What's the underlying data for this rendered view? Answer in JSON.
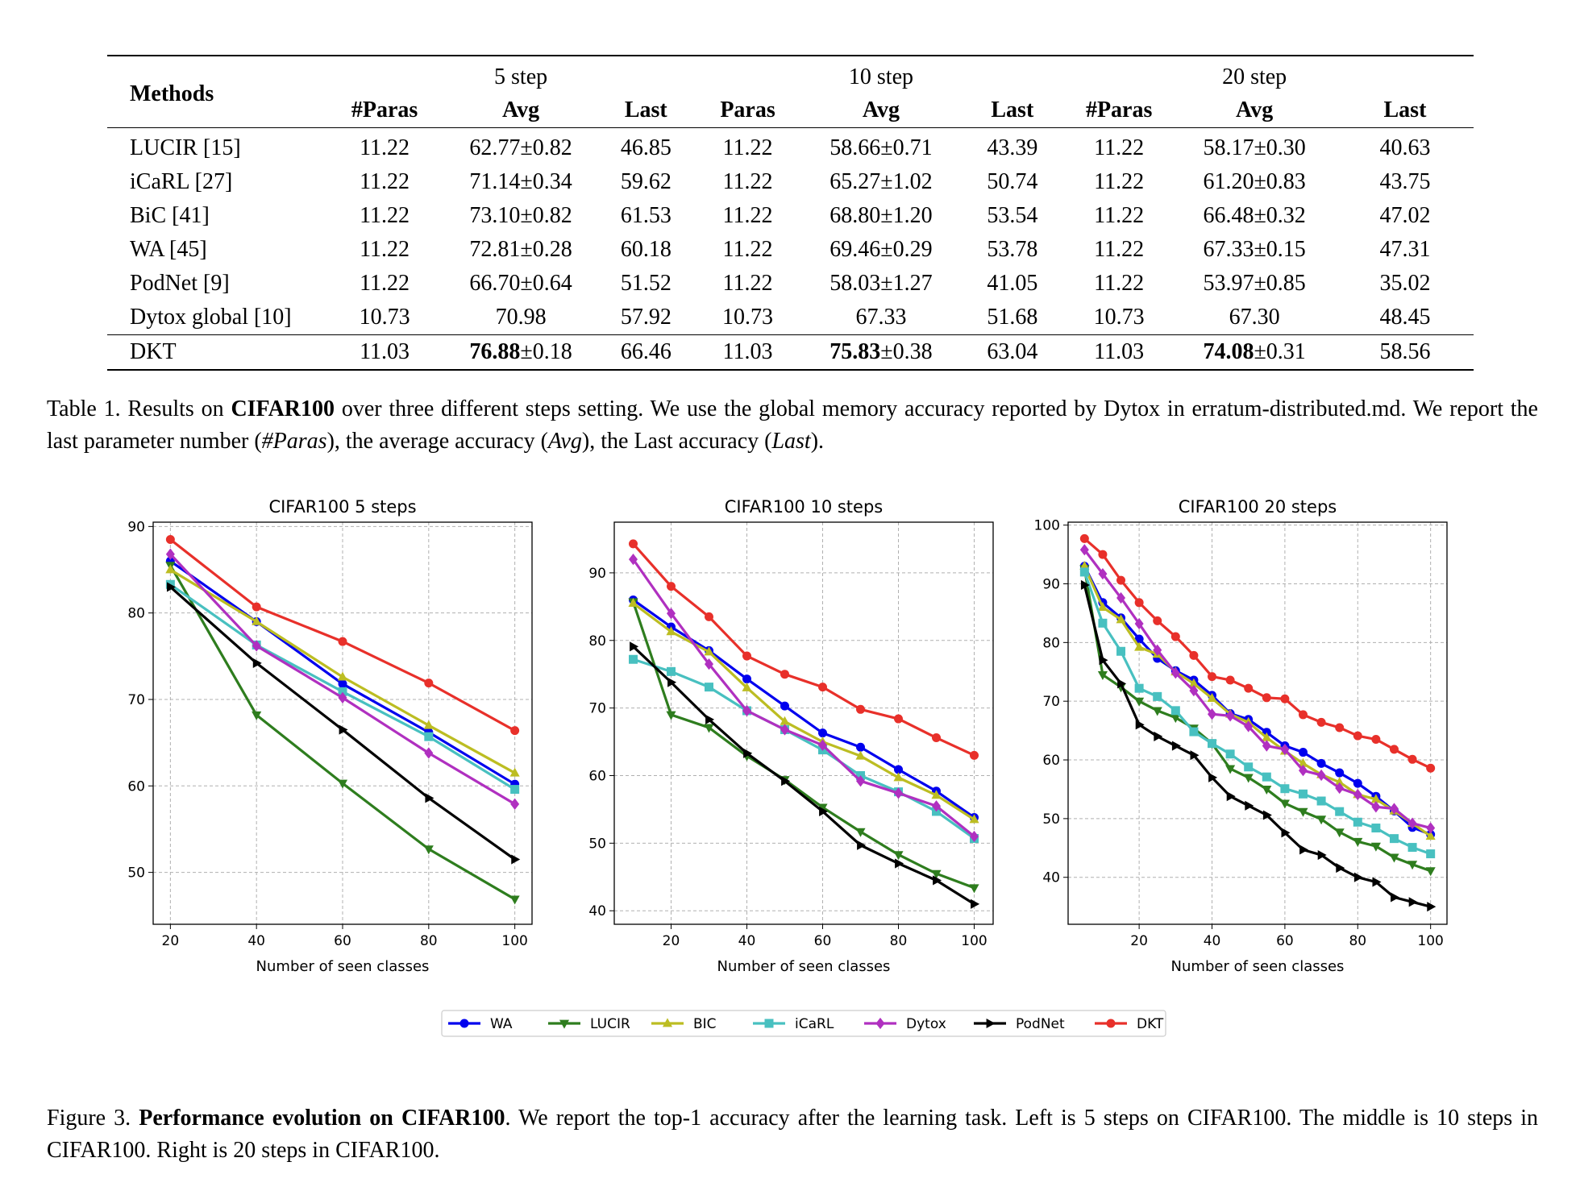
{
  "table": {
    "methods_header": "Methods",
    "groups": [
      "5 step",
      "10 step",
      "20 step"
    ],
    "subheaders": [
      "#Paras",
      "Avg",
      "Last",
      "Paras",
      "Avg",
      "Last",
      "#Paras",
      "Avg",
      "Last"
    ],
    "rows": [
      {
        "method": "LUCIR [15]",
        "cells": [
          "11.22",
          "62.77±0.82",
          "46.85",
          "11.22",
          "58.66±0.71",
          "43.39",
          "11.22",
          "58.17±0.30",
          "40.63"
        ]
      },
      {
        "method": "iCaRL [27]",
        "cells": [
          "11.22",
          "71.14±0.34",
          "59.62",
          "11.22",
          "65.27±1.02",
          "50.74",
          "11.22",
          "61.20±0.83",
          "43.75"
        ]
      },
      {
        "method": "BiC [41]",
        "cells": [
          "11.22",
          "73.10±0.82",
          "61.53",
          "11.22",
          "68.80±1.20",
          "53.54",
          "11.22",
          "66.48±0.32",
          "47.02"
        ]
      },
      {
        "method": "WA [45]",
        "cells": [
          "11.22",
          "72.81±0.28",
          "60.18",
          "11.22",
          "69.46±0.29",
          "53.78",
          "11.22",
          "67.33±0.15",
          "47.31"
        ]
      },
      {
        "method": "PodNet [9]",
        "cells": [
          "11.22",
          "66.70±0.64",
          "51.52",
          "11.22",
          "58.03±1.27",
          "41.05",
          "11.22",
          "53.97±0.85",
          "35.02"
        ]
      },
      {
        "method": "Dytox global [10]",
        "cells": [
          "10.73",
          "70.98",
          "57.92",
          "10.73",
          "67.33",
          "51.68",
          "10.73",
          "67.30",
          "48.45"
        ]
      }
    ],
    "dkt_row": {
      "method": "DKT",
      "paras_5": "11.03",
      "avg_5_bold": "76.88",
      "avg_5_pm": "±0.18",
      "last_5": "66.46",
      "paras_10": "11.03",
      "avg_10_bold": "75.83",
      "avg_10_pm": "±0.38",
      "last_10": "63.04",
      "paras_20": "11.03",
      "avg_20_bold": "74.08",
      "avg_20_pm": "±0.31",
      "last_20": "58.56"
    }
  },
  "caption1": {
    "lead": "Table 1.  Results on ",
    "bold": "CIFAR100",
    "mid": " over three different steps setting.  We use the global memory accuracy reported by Dytox in erratum-distributed.md. We report the last parameter number (",
    "i1": "#Paras",
    "t1": "), the average accuracy (",
    "i2": "Avg",
    "t2": "), the Last accuracy (",
    "i3": "Last",
    "t3": ")."
  },
  "caption2": {
    "lead": "Figure 3. ",
    "bold": "Performance evolution on CIFAR100",
    "rest": ". We report the top-1 accuracy after the learning task. Left is 5 steps on CIFAR100. The middle is 10 steps in CIFAR100. Right is 20 steps in CIFAR100."
  },
  "legend": [
    {
      "name": "WA",
      "color": "#0000ee",
      "marker": "circle"
    },
    {
      "name": "LUCIR",
      "color": "#2e7d1e",
      "marker": "tri-down"
    },
    {
      "name": "BIC",
      "color": "#bcbd22",
      "marker": "tri-up"
    },
    {
      "name": "iCaRL",
      "color": "#48c0c0",
      "marker": "square"
    },
    {
      "name": "Dytox",
      "color": "#b030c0",
      "marker": "diamond"
    },
    {
      "name": "PodNet",
      "color": "#000000",
      "marker": "tri-right"
    },
    {
      "name": "DKT",
      "color": "#e8302a",
      "marker": "circle"
    }
  ],
  "chart_data": [
    {
      "type": "line",
      "title": "CIFAR100 5 steps",
      "xlabel": "Number of seen classes",
      "ylabel": "",
      "xlim": [
        16,
        104
      ],
      "ylim": [
        44,
        90.5
      ],
      "xticks": [
        20,
        40,
        60,
        80,
        100
      ],
      "yticks": [
        50,
        60,
        70,
        80,
        90
      ],
      "grid": true,
      "x": [
        20,
        40,
        60,
        80,
        100
      ],
      "series": [
        {
          "name": "WA",
          "values": [
            86.0,
            79.0,
            71.8,
            66.2,
            60.2
          ]
        },
        {
          "name": "LUCIR",
          "values": [
            85.5,
            68.2,
            60.3,
            52.7,
            46.9
          ]
        },
        {
          "name": "BIC",
          "values": [
            85.0,
            79.0,
            72.6,
            67.0,
            61.5
          ]
        },
        {
          "name": "iCaRL",
          "values": [
            83.3,
            76.3,
            70.9,
            65.7,
            59.6
          ]
        },
        {
          "name": "Dytox",
          "values": [
            86.8,
            76.2,
            70.2,
            63.8,
            57.9
          ]
        },
        {
          "name": "PodNet",
          "values": [
            83.0,
            74.2,
            66.5,
            58.6,
            51.5
          ]
        },
        {
          "name": "DKT",
          "values": [
            88.5,
            80.7,
            76.7,
            71.9,
            66.4
          ]
        }
      ]
    },
    {
      "type": "line",
      "title": "CIFAR100 10 steps",
      "xlabel": "Number of seen classes",
      "ylabel": "",
      "xlim": [
        5,
        105
      ],
      "ylim": [
        38,
        97.5
      ],
      "xticks": [
        20,
        40,
        60,
        80,
        100
      ],
      "yticks": [
        40,
        50,
        60,
        70,
        80,
        90
      ],
      "grid": true,
      "x": [
        10,
        20,
        30,
        40,
        50,
        60,
        70,
        80,
        90,
        100
      ],
      "series": [
        {
          "name": "WA",
          "values": [
            86.0,
            82.0,
            78.5,
            74.3,
            70.3,
            66.3,
            64.2,
            60.9,
            57.7,
            53.8
          ]
        },
        {
          "name": "LUCIR",
          "values": [
            85.7,
            69.0,
            67.1,
            62.9,
            59.4,
            55.3,
            51.7,
            48.3,
            45.5,
            43.4
          ]
        },
        {
          "name": "BIC",
          "values": [
            85.5,
            81.3,
            78.3,
            73.0,
            68.0,
            65.0,
            62.9,
            59.7,
            57.1,
            53.5
          ]
        },
        {
          "name": "iCaRL",
          "values": [
            77.2,
            75.4,
            73.1,
            69.6,
            66.8,
            63.8,
            60.0,
            57.6,
            54.7,
            50.7
          ]
        },
        {
          "name": "Dytox",
          "values": [
            92.0,
            84.0,
            76.5,
            69.6,
            66.8,
            64.5,
            59.2,
            57.4,
            55.5,
            51.0
          ]
        },
        {
          "name": "PodNet",
          "values": [
            79.1,
            73.8,
            68.3,
            63.3,
            59.2,
            54.7,
            49.7,
            47.0,
            44.5,
            41.0
          ]
        },
        {
          "name": "DKT",
          "values": [
            94.3,
            88.0,
            83.5,
            77.7,
            75.0,
            73.1,
            69.8,
            68.4,
            65.6,
            63.0
          ]
        }
      ]
    },
    {
      "type": "line",
      "title": "CIFAR100 20 steps",
      "xlabel": "Number of seen classes",
      "ylabel": "",
      "xlim": [
        0.5,
        104.5
      ],
      "ylim": [
        32,
        100.5
      ],
      "xticks": [
        20,
        40,
        60,
        80,
        100
      ],
      "yticks": [
        40,
        50,
        60,
        70,
        80,
        90,
        100
      ],
      "grid": true,
      "x": [
        5,
        10,
        15,
        20,
        25,
        30,
        35,
        40,
        45,
        50,
        55,
        60,
        65,
        70,
        75,
        80,
        85,
        90,
        95,
        100
      ],
      "series": [
        {
          "name": "WA",
          "values": [
            93.0,
            86.8,
            84.2,
            80.6,
            77.3,
            75.2,
            73.6,
            71.0,
            67.9,
            66.9,
            64.7,
            62.4,
            61.3,
            59.4,
            57.8,
            56.0,
            53.8,
            51.3,
            48.5,
            47.3
          ]
        },
        {
          "name": "LUCIR",
          "values": [
            92.6,
            74.5,
            72.4,
            70.0,
            68.4,
            67.2,
            65.4,
            62.8,
            58.5,
            57.0,
            55.0,
            52.6,
            51.2,
            49.9,
            47.7,
            46.1,
            45.3,
            43.4,
            42.2,
            41.1
          ]
        },
        {
          "name": "BIC",
          "values": [
            93.0,
            86.0,
            83.9,
            79.2,
            78.0,
            75.0,
            73.0,
            70.5,
            67.8,
            66.4,
            63.8,
            61.5,
            59.4,
            57.5,
            56.2,
            54.1,
            53.3,
            51.3,
            49.2,
            47.0
          ]
        },
        {
          "name": "iCaRL",
          "values": [
            92.0,
            83.3,
            78.5,
            72.2,
            70.8,
            68.4,
            64.8,
            62.8,
            61.0,
            58.8,
            57.1,
            55.1,
            54.2,
            53.0,
            51.2,
            49.4,
            48.4,
            46.6,
            45.1,
            44.0
          ]
        },
        {
          "name": "Dytox",
          "values": [
            95.8,
            91.7,
            87.6,
            83.2,
            78.7,
            74.8,
            71.8,
            67.8,
            67.5,
            65.7,
            62.4,
            61.8,
            58.2,
            57.4,
            55.2,
            54.1,
            52.0,
            51.7,
            49.2,
            48.4
          ]
        },
        {
          "name": "PodNet",
          "values": [
            89.8,
            77.0,
            73.0,
            66.0,
            64.0,
            62.4,
            60.8,
            57.0,
            53.8,
            52.2,
            50.6,
            47.6,
            44.7,
            43.8,
            41.6,
            40.0,
            39.2,
            36.6,
            35.8,
            35.0
          ]
        },
        {
          "name": "DKT",
          "values": [
            97.7,
            95.0,
            90.6,
            86.8,
            83.7,
            81.0,
            77.8,
            74.2,
            73.6,
            72.2,
            70.6,
            70.4,
            67.7,
            66.4,
            65.5,
            64.1,
            63.5,
            61.8,
            60.1,
            58.6
          ]
        }
      ]
    }
  ]
}
